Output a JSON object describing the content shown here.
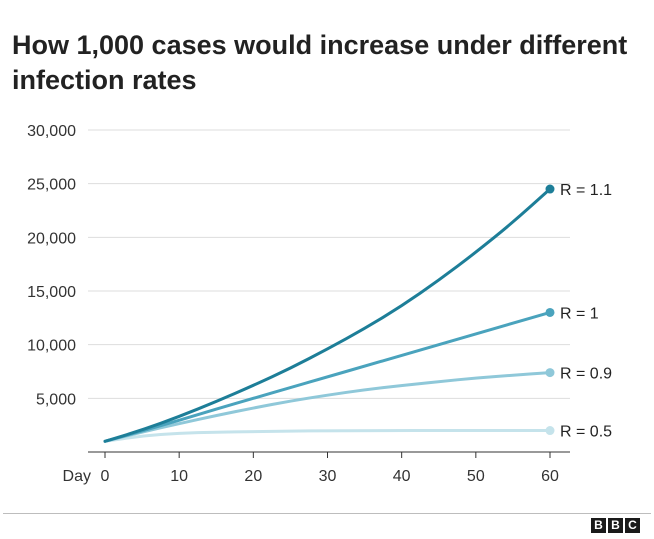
{
  "chart_data": {
    "type": "line",
    "title": "How 1,000 cases would increase under different infection rates",
    "xlabel": "Day",
    "ylabel": "",
    "xlim": [
      0,
      60
    ],
    "ylim": [
      0,
      30000
    ],
    "x_ticks": [
      0,
      10,
      20,
      30,
      40,
      50,
      60
    ],
    "y_ticks": [
      "5,000",
      "10,000",
      "15,000",
      "20,000",
      "25,000",
      "30,000"
    ],
    "y_tick_values": [
      5000,
      10000,
      15000,
      20000,
      25000,
      30000
    ],
    "grid": true,
    "legend": "end-of-line labels",
    "x": [
      0,
      5,
      10,
      15,
      20,
      25,
      30,
      35,
      40,
      45,
      50,
      55,
      60
    ],
    "series": [
      {
        "name": "R = 1.1",
        "color": "#1d7e98",
        "values": [
          1000,
          2050,
          3300,
          4700,
          6200,
          7800,
          9600,
          11500,
          13600,
          16000,
          18600,
          21400,
          24500
        ]
      },
      {
        "name": "R = 1",
        "color": "#4aa3bd",
        "values": [
          1000,
          1950,
          2950,
          4000,
          5000,
          6000,
          7000,
          8000,
          9000,
          10000,
          11000,
          12000,
          13000
        ]
      },
      {
        "name": "R = 0.9",
        "color": "#8fc8d9",
        "values": [
          1000,
          1850,
          2650,
          3400,
          4100,
          4750,
          5300,
          5800,
          6200,
          6550,
          6900,
          7150,
          7400
        ]
      },
      {
        "name": "R = 0.5",
        "color": "#c5e3eb",
        "values": [
          1000,
          1500,
          1750,
          1850,
          1900,
          1950,
          1980,
          1990,
          2000,
          2000,
          2000,
          2000,
          2000
        ]
      }
    ]
  },
  "footer": {
    "logo": [
      "B",
      "B",
      "C"
    ]
  }
}
